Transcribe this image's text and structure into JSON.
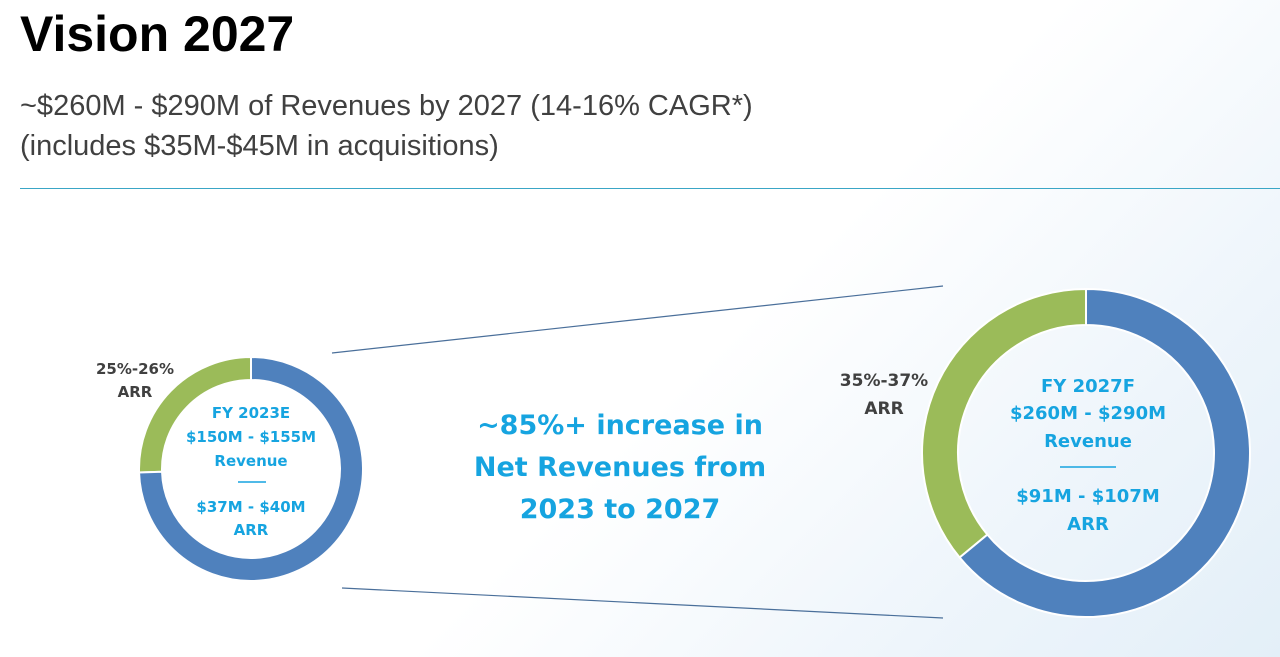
{
  "slide": {
    "title": "Vision 2027",
    "subtitle_line1": "~$260M - $290M of Revenues by 2027 (14-16% CAGR*)",
    "subtitle_line2": "(includes $35M-$45M in acquisitions)",
    "center_text": [
      "~85%+ increase in",
      "Net Revenues from",
      "2023 to 2027"
    ]
  },
  "colors": {
    "revenue_blue": "#4f81bd",
    "arr_green": "#9bbb59",
    "accent_cyan": "#16a4e0",
    "label_gray": "#404040"
  },
  "chart_data": [
    {
      "type": "pie",
      "variant": "donut",
      "segments": [
        {
          "name": "ARR",
          "value": 25.5,
          "label_line1": "25%-26%",
          "label_line2": "ARR"
        },
        {
          "name": "Other Revenue",
          "value": 74.5
        }
      ],
      "center_lines": [
        "FY 2023E",
        "$150M - $155M",
        "Revenue",
        "$37M - $40M",
        "ARR"
      ]
    },
    {
      "type": "pie",
      "variant": "donut",
      "segments": [
        {
          "name": "ARR",
          "value": 36,
          "label_line1": "35%-37%",
          "label_line2": "ARR"
        },
        {
          "name": "Other Revenue",
          "value": 64
        }
      ],
      "center_lines": [
        "FY 2027F",
        "$260M - $290M",
        "Revenue",
        "$91M - $107M",
        "ARR"
      ]
    }
  ]
}
